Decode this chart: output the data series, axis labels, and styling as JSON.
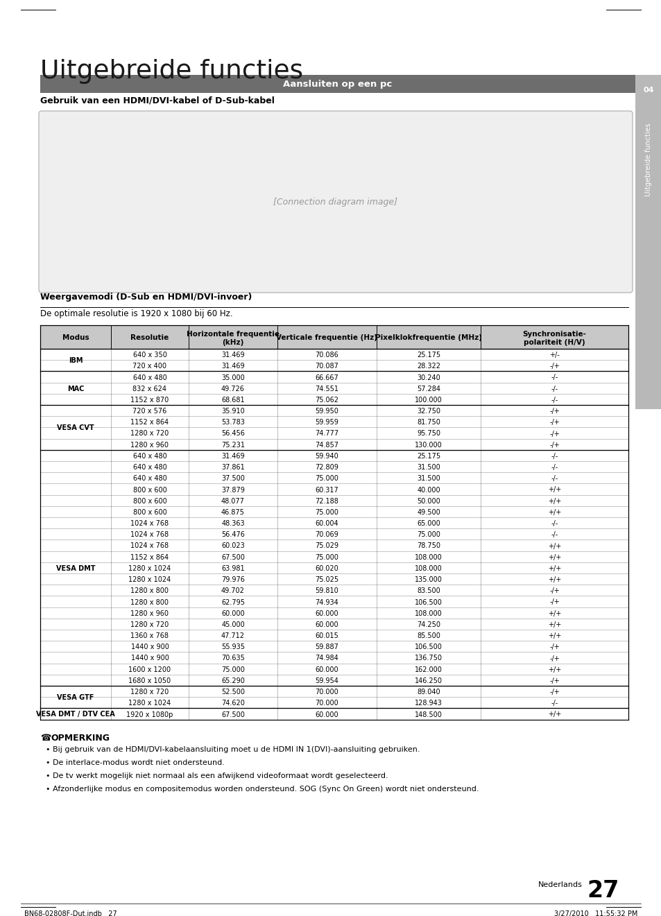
{
  "title": "Uitgebreide functies",
  "section_bar_text": "Aansluiten op een pc",
  "header_bg": "#6d6d6d",
  "subtitle": "Gebruik van een HDMI/DVI-kabel of D-Sub-kabel",
  "table_title": "Weergavemodi (D-Sub en HDMI/DVI-invoer)",
  "table_subtitle": "De optimale resolutie is 1920 x 1080 bij 60 Hz.",
  "col_headers": [
    "Modus",
    "Resolutie",
    "Horizontale frequentie\n(kHz)",
    "Verticale frequentie (Hz)",
    "Pixelklokfrequentie (MHz)",
    "Synchronisatie-\npolariteit (H/V)"
  ],
  "table_data": [
    [
      "IBM",
      "640 x 350",
      "31.469",
      "70.086",
      "25.175",
      "+/-"
    ],
    [
      "",
      "720 x 400",
      "31.469",
      "70.087",
      "28.322",
      "-/+"
    ],
    [
      "MAC",
      "640 x 480",
      "35.000",
      "66.667",
      "30.240",
      "-/-"
    ],
    [
      "",
      "832 x 624",
      "49.726",
      "74.551",
      "57.284",
      "-/-"
    ],
    [
      "",
      "1152 x 870",
      "68.681",
      "75.062",
      "100.000",
      "-/-"
    ],
    [
      "VESA CVT",
      "720 x 576",
      "35.910",
      "59.950",
      "32.750",
      "-/+"
    ],
    [
      "",
      "1152 x 864",
      "53.783",
      "59.959",
      "81.750",
      "-/+"
    ],
    [
      "",
      "1280 x 720",
      "56.456",
      "74.777",
      "95.750",
      "-/+"
    ],
    [
      "",
      "1280 x 960",
      "75.231",
      "74.857",
      "130.000",
      "-/+"
    ],
    [
      "VESA DMT",
      "640 x 480",
      "31.469",
      "59.940",
      "25.175",
      "-/-"
    ],
    [
      "",
      "640 x 480",
      "37.861",
      "72.809",
      "31.500",
      "-/-"
    ],
    [
      "",
      "640 x 480",
      "37.500",
      "75.000",
      "31.500",
      "-/-"
    ],
    [
      "",
      "800 x 600",
      "37.879",
      "60.317",
      "40.000",
      "+/+"
    ],
    [
      "",
      "800 x 600",
      "48.077",
      "72.188",
      "50.000",
      "+/+"
    ],
    [
      "",
      "800 x 600",
      "46.875",
      "75.000",
      "49.500",
      "+/+"
    ],
    [
      "",
      "1024 x 768",
      "48.363",
      "60.004",
      "65.000",
      "-/-"
    ],
    [
      "",
      "1024 x 768",
      "56.476",
      "70.069",
      "75.000",
      "-/-"
    ],
    [
      "",
      "1024 x 768",
      "60.023",
      "75.029",
      "78.750",
      "+/+"
    ],
    [
      "",
      "1152 x 864",
      "67.500",
      "75.000",
      "108.000",
      "+/+"
    ],
    [
      "",
      "1280 x 1024",
      "63.981",
      "60.020",
      "108.000",
      "+/+"
    ],
    [
      "",
      "1280 x 1024",
      "79.976",
      "75.025",
      "135.000",
      "+/+"
    ],
    [
      "",
      "1280 x 800",
      "49.702",
      "59.810",
      "83.500",
      "-/+"
    ],
    [
      "",
      "1280 x 800",
      "62.795",
      "74.934",
      "106.500",
      "-/+"
    ],
    [
      "",
      "1280 x 960",
      "60.000",
      "60.000",
      "108.000",
      "+/+"
    ],
    [
      "",
      "1280 x 720",
      "45.000",
      "60.000",
      "74.250",
      "+/+"
    ],
    [
      "",
      "1360 x 768",
      "47.712",
      "60.015",
      "85.500",
      "+/+"
    ],
    [
      "",
      "1440 x 900",
      "55.935",
      "59.887",
      "106.500",
      "-/+"
    ],
    [
      "",
      "1440 x 900",
      "70.635",
      "74.984",
      "136.750",
      "-/+"
    ],
    [
      "",
      "1600 x 1200",
      "75.000",
      "60.000",
      "162.000",
      "+/+"
    ],
    [
      "",
      "1680 x 1050",
      "65.290",
      "59.954",
      "146.250",
      "-/+"
    ],
    [
      "VESA GTF",
      "1280 x 720",
      "52.500",
      "70.000",
      "89.040",
      "-/+"
    ],
    [
      "",
      "1280 x 1024",
      "74.620",
      "70.000",
      "128.943",
      "-/-"
    ],
    [
      "VESA DMT / DTV CEA",
      "1920 x 1080p",
      "67.500",
      "60.000",
      "148.500",
      "+/+"
    ]
  ],
  "group_rows": {
    "IBM": [
      0,
      1
    ],
    "MAC": [
      2,
      4
    ],
    "VESA CVT": [
      5,
      8
    ],
    "VESA DMT": [
      9,
      29
    ],
    "VESA GTF": [
      30,
      31
    ],
    "VESA DMT / DTV CEA": [
      32,
      32
    ]
  },
  "notes_header": "OPMERKING",
  "notes": [
    "Bij gebruik van de HDMI/DVI-kabelaansluiting moet u de HDMI IN 1(DVI)-aansluiting gebruiken.",
    "De interlace-modus wordt niet ondersteund.",
    "De tv werkt mogelijk niet normaal als een afwijkend videoformaat wordt geselecteerd.",
    "Afzonderlijke modus en compositemodus worden ondersteund. SOG (Sync On Green) wordt niet ondersteund."
  ],
  "footer_left": "BN68-02808F-Dut.indb   27",
  "footer_right": "3/27/2010   11:55:32 PM",
  "page_number": "27",
  "page_label": "Nederlands",
  "side_label": "Uitgebreide functies",
  "side_number": "04",
  "bg_color": "#ffffff",
  "side_tab_color": "#b8b8b8",
  "table_header_bg": "#c8c8c8"
}
